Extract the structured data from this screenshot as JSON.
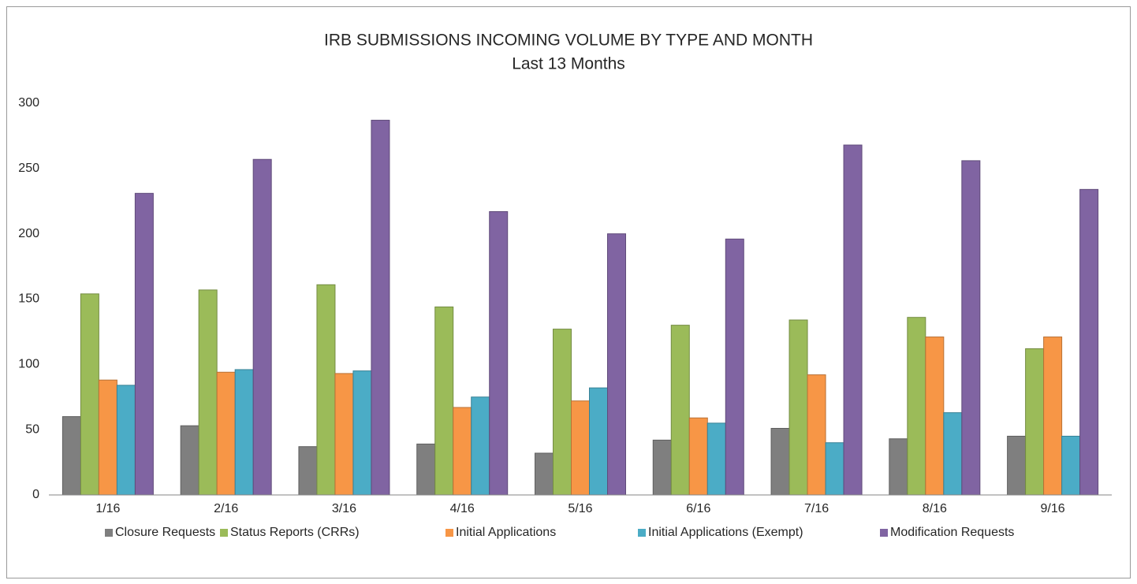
{
  "chart_data": {
    "type": "bar",
    "title": "IRB SUBMISSIONS INCOMING VOLUME BY TYPE AND MONTH",
    "subtitle": "Last 13 Months",
    "categories": [
      "1/16",
      "2/16",
      "3/16",
      "4/16",
      "5/16",
      "6/16",
      "7/16",
      "8/16",
      "9/16"
    ],
    "series": [
      {
        "name": "Closure Requests",
        "color": "#7f7f7f",
        "values": [
          60,
          53,
          37,
          39,
          32,
          42,
          51,
          43,
          45
        ]
      },
      {
        "name": "Status Reports (CRRs)",
        "color": "#9bbb59",
        "values": [
          154,
          157,
          161,
          144,
          127,
          130,
          134,
          136,
          112
        ]
      },
      {
        "name": "Initial Applications",
        "color": "#f79646",
        "values": [
          88,
          94,
          93,
          67,
          72,
          59,
          92,
          121,
          121
        ]
      },
      {
        "name": "Initial Applications (Exempt)",
        "color": "#4bacc6",
        "values": [
          84,
          96,
          95,
          75,
          82,
          55,
          40,
          63,
          45
        ]
      },
      {
        "name": "Modification Requests",
        "color": "#8064a2",
        "values": [
          231,
          257,
          287,
          217,
          200,
          196,
          268,
          256,
          234
        ]
      }
    ],
    "ylim": [
      0,
      300
    ],
    "yticks": [
      0,
      50,
      100,
      150,
      200,
      250,
      300
    ],
    "grid": false,
    "legend": "bottom"
  }
}
